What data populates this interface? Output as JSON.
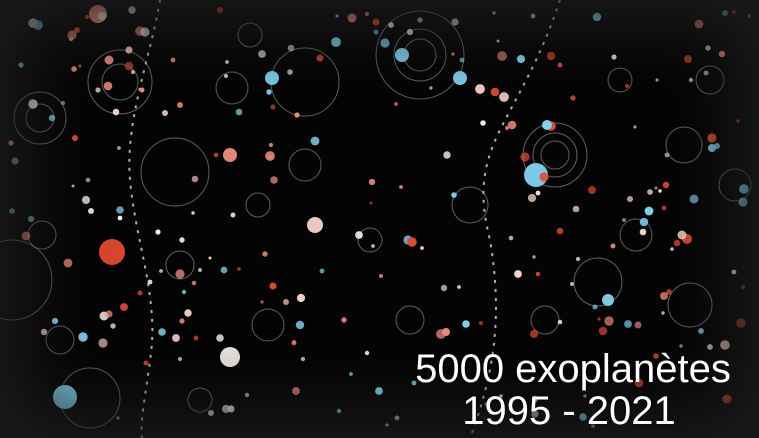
{
  "caption": {
    "line1": "5000 exoplanètes",
    "line2": "1995 - 2021"
  },
  "palette": {
    "background": "#040404",
    "star_white": "#f4efe9",
    "star_pale": "#f6d3c8",
    "planet_blue": "#7fd4f0",
    "planet_red": "#e24a2e",
    "planet_pink": "#f08c7c",
    "orbit": "#cfcfcf"
  }
}
